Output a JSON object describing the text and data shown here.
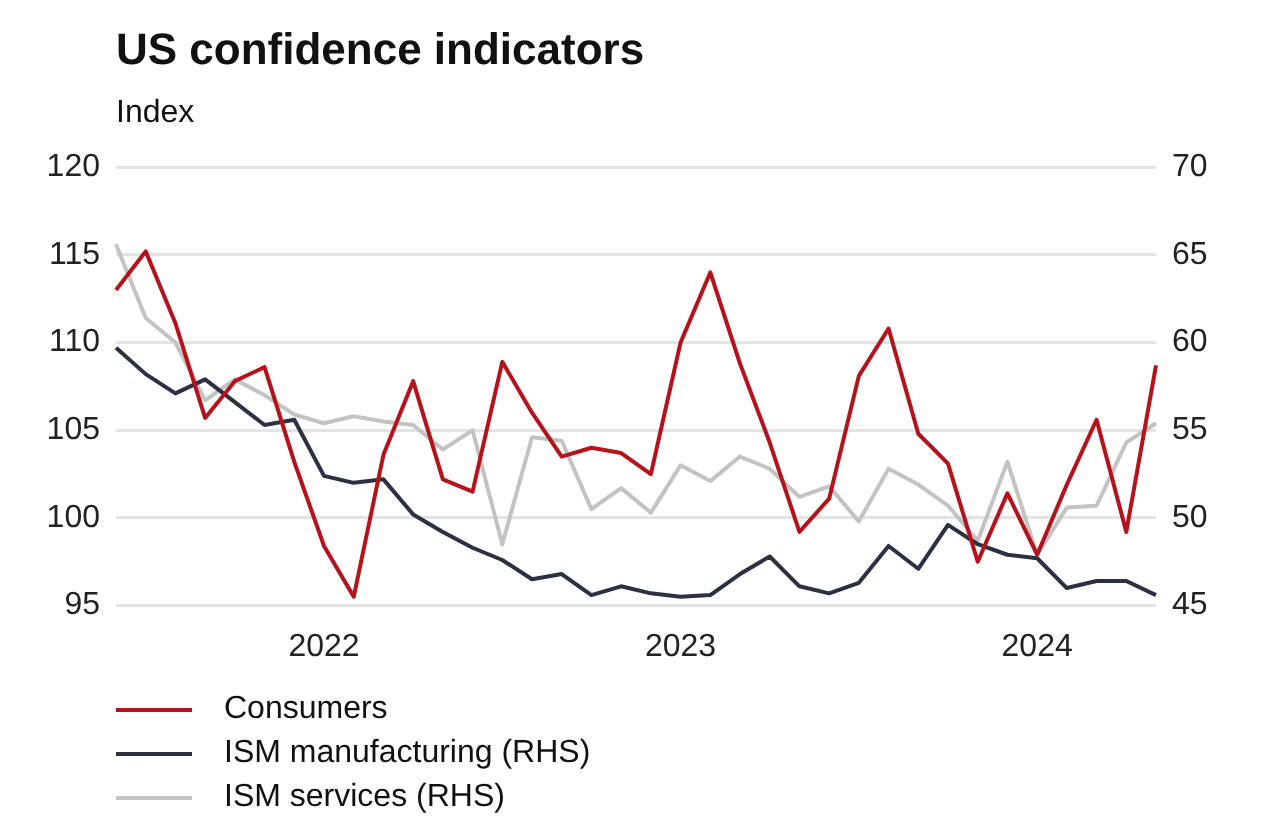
{
  "chart_data": {
    "type": "line",
    "title": "US confidence indicators",
    "ylabel": "Index",
    "categories": [
      null,
      null,
      null,
      null,
      null,
      null,
      null,
      "2022",
      null,
      null,
      null,
      null,
      null,
      null,
      null,
      null,
      null,
      null,
      null,
      "2023",
      null,
      null,
      null,
      null,
      null,
      null,
      null,
      null,
      null,
      null,
      null,
      "2024",
      null,
      null,
      null,
      null
    ],
    "series": [
      {
        "name": "Consumers",
        "color": "#b5121b",
        "values": [
          113.0,
          115.2,
          111.1,
          105.7,
          107.8,
          108.6,
          103.2,
          98.4,
          95.5,
          103.6,
          107.8,
          102.2,
          101.5,
          108.9,
          106.0,
          103.5,
          104.0,
          103.7,
          102.5,
          110.0,
          114.0,
          108.8,
          104.3,
          99.2,
          101.1,
          108.1,
          110.8,
          104.8,
          103.1,
          97.5,
          101.4,
          97.9,
          101.9,
          105.6,
          99.2,
          108.7
        ]
      },
      {
        "name": "ISM manufacturing (RHS)",
        "color": "#2b3042",
        "axis": "y2",
        "values": [
          59.7,
          58.2,
          57.1,
          57.9,
          56.6,
          55.3,
          55.6,
          52.4,
          52.0,
          52.2,
          50.2,
          49.2,
          48.3,
          47.6,
          46.5,
          46.8,
          45.6,
          46.1,
          45.7,
          45.5,
          45.6,
          46.8,
          47.8,
          46.1,
          45.7,
          46.3,
          48.4,
          47.1,
          49.6,
          48.5,
          47.9,
          47.7,
          46.0,
          46.4,
          46.4,
          45.6
        ]
      },
      {
        "name": "ISM services (RHS)",
        "color": "#c3c3c3",
        "axis": "y2",
        "values": [
          65.6,
          61.4,
          60.0,
          56.7,
          57.9,
          57.0,
          55.9,
          55.4,
          55.8,
          55.5,
          55.3,
          53.9,
          55.0,
          48.5,
          54.6,
          54.4,
          50.5,
          51.7,
          50.3,
          53.0,
          52.1,
          53.5,
          52.8,
          51.2,
          51.8,
          49.8,
          52.8,
          51.9,
          50.7,
          48.7,
          53.2,
          47.9,
          50.6,
          50.7,
          54.3,
          55.4
        ]
      }
    ],
    "ylim": [
      95,
      120
    ],
    "yticks": [
      95,
      100,
      105,
      110,
      115,
      120
    ],
    "y2lim": [
      45,
      70
    ],
    "y2ticks": [
      45,
      50,
      55,
      60,
      65,
      70
    ],
    "grid": "y",
    "legend": "bottom",
    "marker": "none",
    "line_style": "solid"
  }
}
